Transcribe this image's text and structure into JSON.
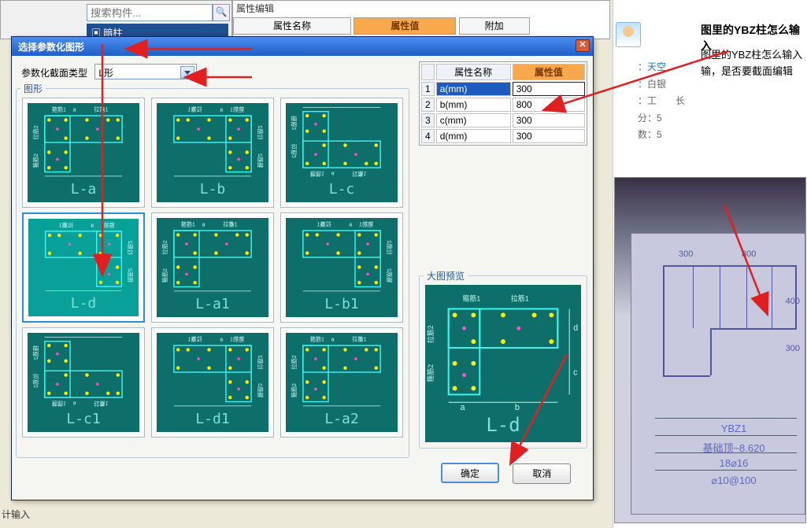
{
  "bg": {
    "search_placeholder": "搜索构件...",
    "tree_item": "▣ 暗柱",
    "prop_panel_title": "属性编辑",
    "col_name": "属性名称",
    "col_value": "属性值",
    "col_extra": "附加",
    "label_input_top": "输入",
    "label_input_bottom": "计输入",
    "tree_icon": "▤"
  },
  "dialog": {
    "title": "选择参数化图形",
    "type_label": "参数化截面类型",
    "type_value": "L形",
    "shapes_group": "图形",
    "preview_group": "大图预览",
    "ok": "确定",
    "cancel": "取消",
    "shapes": [
      {
        "caption": "L-a"
      },
      {
        "caption": "L-b"
      },
      {
        "caption": "L-c"
      },
      {
        "caption": "L-d",
        "selected": true
      },
      {
        "caption": "L-a1"
      },
      {
        "caption": "L-b1"
      },
      {
        "caption": "L-c1"
      },
      {
        "caption": "L-d1"
      },
      {
        "caption": "L-a2"
      }
    ],
    "preview_caption": "L-d"
  },
  "props": {
    "cols": {
      "name": "属性名称",
      "value": "属性值"
    },
    "rows": [
      {
        "n": "1",
        "k": "a(mm)",
        "v": "300",
        "sel": true
      },
      {
        "n": "2",
        "k": "b(mm)",
        "v": "800"
      },
      {
        "n": "3",
        "k": "c(mm)",
        "v": "300"
      },
      {
        "n": "4",
        "k": "d(mm)",
        "v": "300"
      }
    ]
  },
  "right": {
    "title": "图里的YBZ柱怎么输入",
    "body": "图里的YBZ柱怎么输入\n输，是否要截面编辑",
    "meta_user_label": "：",
    "meta_user": "天空",
    "meta_level_label": "：",
    "meta_level": "白银",
    "meta_cat_label": "：",
    "meta_cat": "工　　长",
    "meta_pts_label": "分：",
    "meta_pts": "5",
    "meta_cnt_label": "数：",
    "meta_cnt": "5"
  },
  "photo": {
    "dim_300": "300",
    "dim_800": "800",
    "dim_400": "400",
    "row_ybz": "YBZ1",
    "row_base": "基础顶~8.620",
    "row_bars": "18⌀16",
    "row_stir": "⌀10@100"
  },
  "shape_labels": {
    "gujin1": "箍筋1",
    "gujin2": "箍筋2",
    "lajin1": "拉筋1",
    "lajin2": "拉筋2",
    "lajin3": "拉筋3",
    "jd": "jd"
  },
  "colors": {
    "teal_dark": "#0d6e6a",
    "teal_sel": "#0aa09a",
    "cyan_text": "#7de0dc",
    "orange": "#f9a94d",
    "arrow_red": "#e02020"
  }
}
